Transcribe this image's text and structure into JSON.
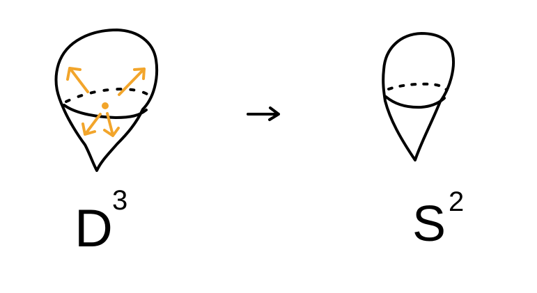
{
  "colors": {
    "ink": "#000000",
    "accent": "#f2a52b",
    "background": "#ffffff"
  },
  "left_figure": {
    "label": "D",
    "exponent": "3",
    "arrow_count": 4,
    "has_center_point": true
  },
  "map_arrow": {
    "icon": "right-arrow-icon"
  },
  "right_figure": {
    "label": "S",
    "exponent": "2"
  }
}
